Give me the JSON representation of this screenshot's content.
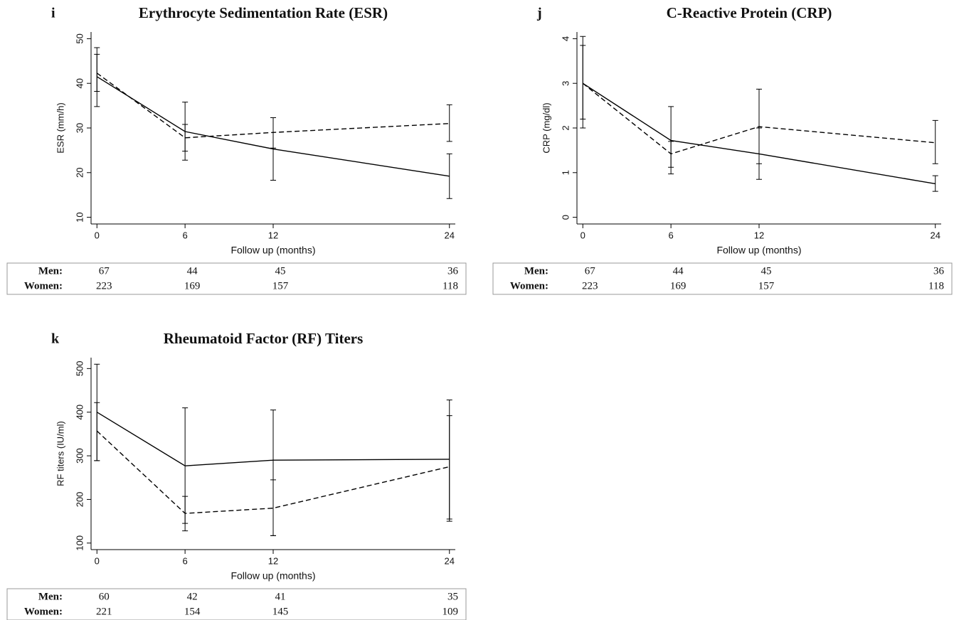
{
  "chart_data": [
    {
      "type": "line",
      "panel": "i",
      "title": "Erythrocyte Sedimentation Rate (ESR)",
      "x_label": "Follow up (months)",
      "y_label": "ESR (mm/h)",
      "x": [
        0,
        6,
        12,
        24
      ],
      "xlim": [
        -0.4,
        24.4
      ],
      "xticks": [
        0,
        6,
        12,
        24
      ],
      "ylim": [
        8.5,
        51.5
      ],
      "yticks": [
        10,
        20,
        30,
        40,
        50
      ],
      "series": [
        {
          "line_style": "solid",
          "color": "#000000",
          "values": [
            41.5,
            29.2,
            25.3,
            19.2
          ],
          "lower": [
            34.8,
            22.8,
            18.3,
            14.2
          ],
          "upper": [
            48,
            35.8,
            32.3,
            24.2
          ]
        },
        {
          "line_style": "dashed",
          "color": "#000000",
          "values": [
            42.3,
            27.8,
            29,
            31
          ],
          "lower": [
            38.2,
            24.8,
            25.5,
            27
          ],
          "upper": [
            46.5,
            30.8,
            32.3,
            35.2
          ]
        }
      ],
      "table": {
        "row_labels": [
          "Men:",
          "Women:"
        ],
        "rows": [
          [
            67,
            44,
            45,
            36
          ],
          [
            223,
            169,
            157,
            118
          ]
        ]
      }
    },
    {
      "type": "line",
      "panel": "j",
      "title": "C-Reactive Protein (CRP)",
      "x_label": "Follow up (months)",
      "y_label": "CRP (mg/dl)",
      "x": [
        0,
        6,
        12,
        24
      ],
      "xlim": [
        -0.4,
        24.4
      ],
      "xticks": [
        0,
        6,
        12,
        24
      ],
      "ylim": [
        -0.15,
        4.15
      ],
      "yticks": [
        0,
        1,
        2,
        3,
        4
      ],
      "series": [
        {
          "line_style": "solid",
          "color": "#000000",
          "values": [
            3.0,
            1.72,
            1.42,
            0.75
          ],
          "lower": [
            2.0,
            0.97,
            0.85,
            0.58
          ],
          "upper": [
            4.05,
            2.48,
            2.0,
            0.93
          ]
        },
        {
          "line_style": "dashed",
          "color": "#000000",
          "values": [
            3.0,
            1.42,
            2.03,
            1.67
          ],
          "lower": [
            2.2,
            1.12,
            1.2,
            1.2
          ],
          "upper": [
            3.85,
            1.7,
            2.87,
            2.17
          ]
        }
      ],
      "table": {
        "row_labels": [
          "Men:",
          "Women:"
        ],
        "rows": [
          [
            67,
            44,
            45,
            36
          ],
          [
            223,
            169,
            157,
            118
          ]
        ]
      }
    },
    {
      "type": "line",
      "panel": "k",
      "title": "Rheumatoid Factor (RF) Titers",
      "x_label": "Follow up (months)",
      "y_label": "RF titers (IU/ml)",
      "x": [
        0,
        6,
        12,
        24
      ],
      "xlim": [
        -0.4,
        24.4
      ],
      "xticks": [
        0,
        6,
        12,
        24
      ],
      "ylim": [
        85,
        525
      ],
      "yticks": [
        100,
        200,
        300,
        400,
        500
      ],
      "series": [
        {
          "line_style": "solid",
          "color": "#000000",
          "values": [
            400,
            277,
            290,
            292
          ],
          "lower": [
            289,
            145,
            117,
            155
          ],
          "upper": [
            510,
            410,
            405,
            428
          ]
        },
        {
          "line_style": "dashed",
          "color": "#000000",
          "values": [
            357,
            168,
            180,
            275
          ],
          "lower": [
            289,
            128,
            117,
            150
          ],
          "upper": [
            422,
            207,
            245,
            392
          ]
        }
      ],
      "table": {
        "row_labels": [
          "Men:",
          "Women:"
        ],
        "rows": [
          [
            60,
            42,
            41,
            35
          ],
          [
            221,
            154,
            145,
            109
          ]
        ]
      }
    }
  ]
}
